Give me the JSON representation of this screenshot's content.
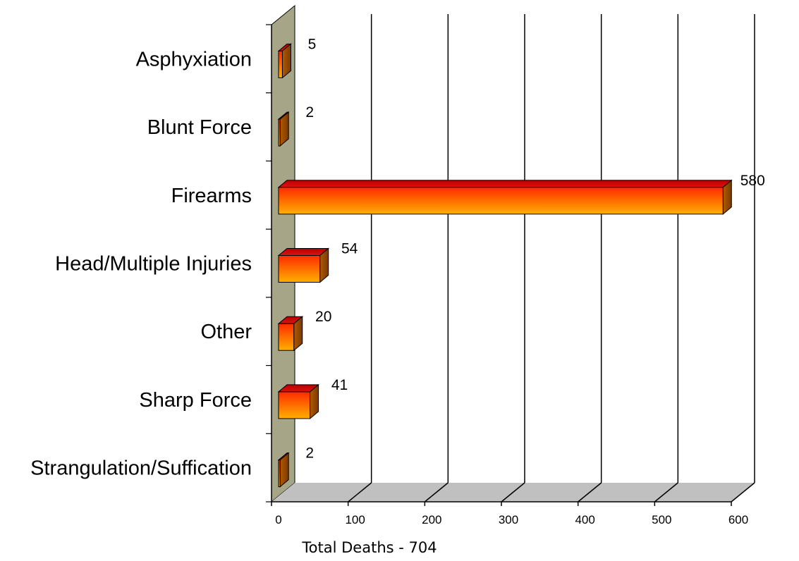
{
  "chart_data": {
    "type": "bar",
    "orientation": "horizontal",
    "three_d": true,
    "categories": [
      "Asphyxiation",
      "Blunt Force",
      "Firearms",
      "Head/Multiple Injuries",
      "Other",
      "Sharp Force",
      "Strangulation/Suffication"
    ],
    "values": [
      5,
      2,
      580,
      54,
      20,
      41,
      2
    ],
    "data_labels": [
      "5",
      "2",
      "580",
      "54",
      "20",
      "41",
      "2"
    ],
    "xlabel": "Total Deaths - 704",
    "ylabel": "",
    "xlim": [
      0,
      600
    ],
    "xticks": [
      0,
      100,
      200,
      300,
      400,
      500,
      600
    ],
    "grid": true,
    "legend": "none",
    "colors": {
      "bar_top": "#e01010",
      "bar_front_start": "#ff2a00",
      "bar_front_end": "#ffb000",
      "bar_side": "#b05a00",
      "wall_left": "#a7a587",
      "floor": "#c0c0c0",
      "grid": "#000000"
    }
  }
}
